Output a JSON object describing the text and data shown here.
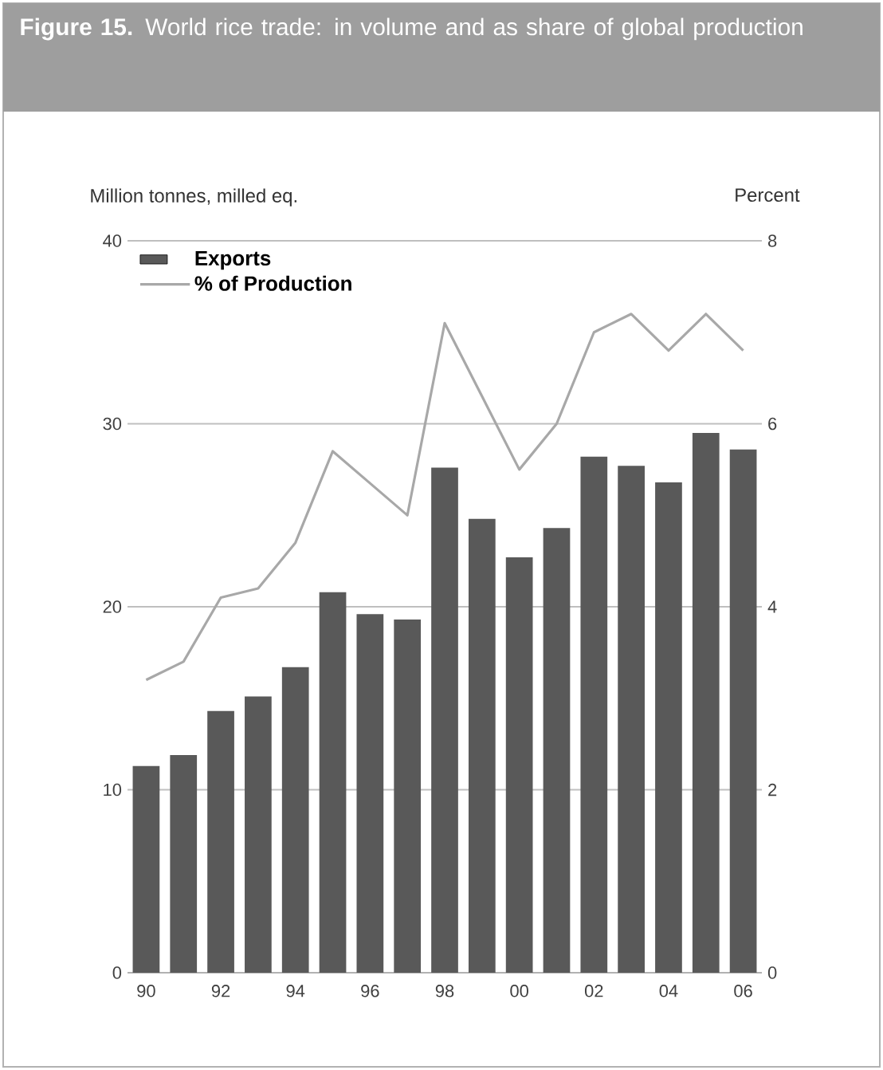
{
  "chart_data": {
    "type": "bar",
    "title": "**Figure 15.** World rice trade: in volume and as share of global production",
    "ylabel": "Million tonnes, milled eq.",
    "y2label": "Percent",
    "categories": [
      "90",
      null,
      "92",
      null,
      "94",
      null,
      "96",
      null,
      "98",
      null,
      "00",
      null,
      "02",
      null,
      "04",
      null,
      "06"
    ],
    "series": [
      {
        "name": "Exports",
        "color": "#595959",
        "values": [
          11.3,
          11.9,
          14.3,
          15.1,
          16.7,
          20.8,
          19.6,
          19.3,
          27.6,
          24.8,
          22.7,
          24.3,
          28.2,
          27.7,
          26.8,
          29.5,
          28.6
        ]
      },
      {
        "name": "% of Production",
        "type": "line",
        "axis": "y2",
        "color": "#a8a8a8",
        "values": [
          3.2,
          3.4,
          4.1,
          4.2,
          4.7,
          5.7,
          5.35,
          5.0,
          7.1,
          6.3,
          5.5,
          6.0,
          7.0,
          7.2,
          6.8,
          7.2,
          6.8
        ]
      }
    ],
    "ylim": [
      0,
      40
    ],
    "yticks": [
      0,
      10,
      20,
      30,
      40
    ],
    "y2lim": [
      0,
      8
    ],
    "y2ticks": [
      0,
      2,
      4,
      6,
      8
    ],
    "grid": "y",
    "legend": "top left"
  }
}
